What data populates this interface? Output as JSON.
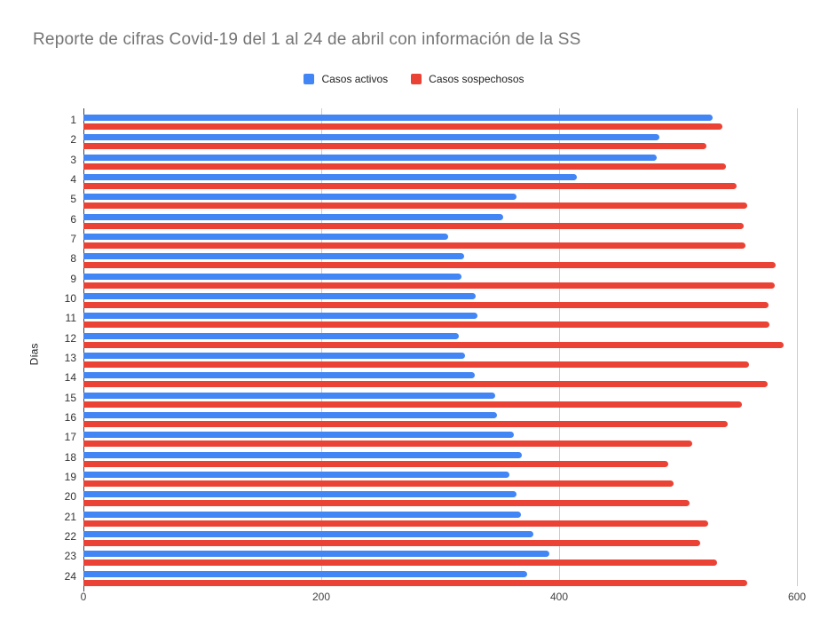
{
  "title": "Reporte de cifras Covid-19 del 1 al 24 de abril con información de la SS",
  "legend": [
    {
      "label": "Casos activos",
      "color": "#4285F4"
    },
    {
      "label": "Casos sospechosos",
      "color": "#EA4335"
    }
  ],
  "axes": {
    "y_label": "Días",
    "x_ticks": [
      0,
      200,
      400,
      600
    ]
  },
  "chart_data": {
    "type": "bar",
    "orientation": "horizontal",
    "title": "Reporte de cifras Covid-19 del 1 al 24 de abril con información de la SS",
    "ylabel": "Días",
    "xlim": [
      0,
      600
    ],
    "x_ticks": [
      0,
      200,
      400,
      600
    ],
    "grid": true,
    "legend_position": "top-center",
    "categories": [
      "1",
      "2",
      "3",
      "4",
      "5",
      "6",
      "7",
      "8",
      "9",
      "10",
      "11",
      "12",
      "13",
      "14",
      "15",
      "16",
      "17",
      "18",
      "19",
      "20",
      "21",
      "22",
      "23",
      "24"
    ],
    "series": [
      {
        "name": "Casos activos",
        "color": "#4285F4",
        "values": [
          529,
          484,
          482,
          415,
          364,
          353,
          307,
          320,
          318,
          330,
          331,
          316,
          321,
          329,
          346,
          348,
          362,
          369,
          358,
          364,
          368,
          378,
          392,
          373
        ]
      },
      {
        "name": "Casos sospechosos",
        "color": "#EA4335",
        "values": [
          537,
          524,
          540,
          549,
          558,
          555,
          557,
          582,
          581,
          576,
          577,
          589,
          560,
          575,
          554,
          542,
          512,
          492,
          496,
          510,
          525,
          519,
          533,
          558
        ]
      }
    ]
  }
}
